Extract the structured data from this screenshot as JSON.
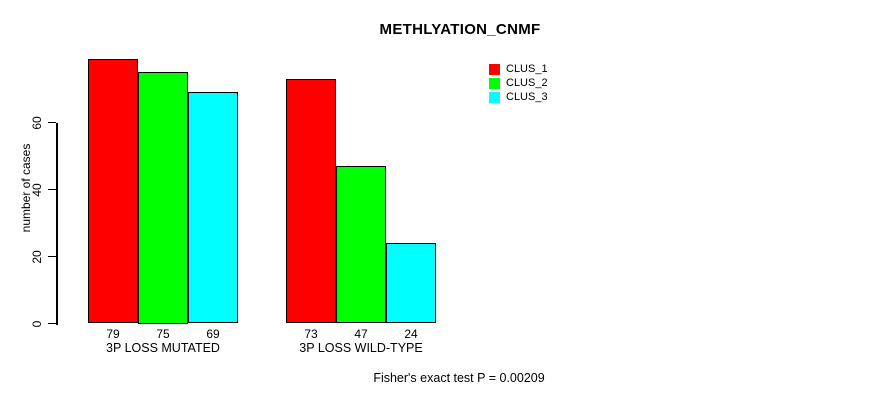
{
  "chart_data": {
    "type": "bar",
    "title": "METHLYATION_CNMF",
    "ylabel": "number of cases",
    "xlabel": "",
    "categories": [
      "3P LOSS MUTATED",
      "3P LOSS WILD-TYPE"
    ],
    "series": [
      {
        "name": "CLUS_1",
        "color": "#FF0000",
        "values": [
          79,
          73
        ]
      },
      {
        "name": "CLUS_2",
        "color": "#00FF00",
        "values": [
          75,
          47
        ]
      },
      {
        "name": "CLUS_3",
        "color": "#00FFFF",
        "values": [
          69,
          24
        ]
      }
    ],
    "y_ticks": [
      0,
      20,
      40,
      60
    ],
    "ylim": [
      0,
      80
    ],
    "grid": false,
    "bar_value_labels_shown": true,
    "legend_position": "top-right",
    "legend_entries": [
      "CLUS_1",
      "CLUS_2",
      "CLUS_3"
    ],
    "annotation": "Fisher's exact test P = 0.00209"
  },
  "colors": {
    "background": "#FFFFFF",
    "axis": "#000000",
    "bar_border": "#000000",
    "clus_1": "#FF0000",
    "clus_2": "#00FF00",
    "clus_3": "#00FFFF"
  }
}
